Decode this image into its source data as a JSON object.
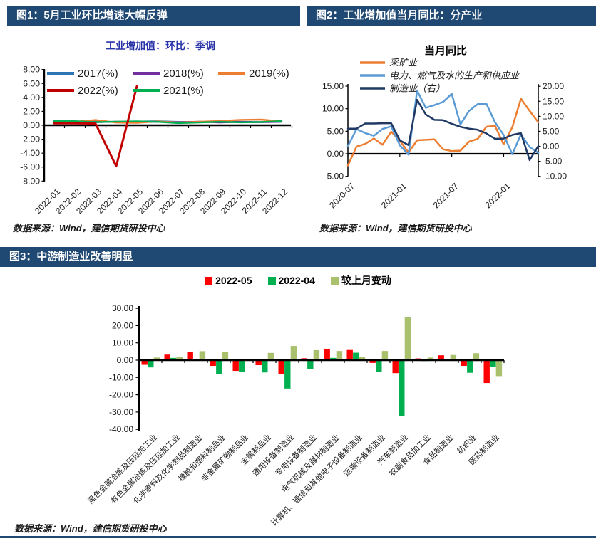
{
  "theme": {
    "banner_color": "#1F4873",
    "banner_text_color": "#FFFFFF",
    "subtitle_color": "#2933A8",
    "axis_color": "#000000"
  },
  "figure1": {
    "banner_title": "图1：5月工业环比增速大幅反弹",
    "subtitle": "工业增加值：环比：季调",
    "source": "数据来源：Wind，建信期货研投中心"
  },
  "figure2": {
    "banner_title": "图2：工业增加值当月同比：分产业",
    "title": "当月同比",
    "source": "数据来源：Wind，建信期货研投中心"
  },
  "figure3": {
    "banner_title": "图3：中游制造业改善明显",
    "source": "数据来源：Wind，建信期货研投中心"
  },
  "chart_data": [
    {
      "id": "figure1",
      "type": "line",
      "title": "工业增加值：环比：季调",
      "ylim": [
        -8,
        8
      ],
      "ytick_step": 2,
      "grid": false,
      "legend_position": "top-inside",
      "categories": [
        "2022-01",
        "2022-02",
        "2022-03",
        "2022-04",
        "2022-05",
        "2022-06",
        "2022-07",
        "2022-08",
        "2022-09",
        "2022-10",
        "2022-11",
        "2022-12"
      ],
      "series": [
        {
          "name": "2017(%)",
          "color": "#2E75B6",
          "values": [
            0.52,
            0.46,
            0.56,
            0.47,
            0.53,
            0.58,
            0.49,
            0.45,
            0.55,
            0.5,
            0.47,
            0.52
          ]
        },
        {
          "name": "2018(%)",
          "color": "#7030A0",
          "values": [
            0.5,
            0.48,
            0.44,
            0.52,
            0.46,
            0.5,
            0.44,
            0.52,
            0.41,
            0.48,
            0.44,
            0.5
          ]
        },
        {
          "name": "2019(%)",
          "color": "#ED7D31",
          "values": [
            0.44,
            0.5,
            0.76,
            0.39,
            0.36,
            0.55,
            0.4,
            0.5,
            0.62,
            0.78,
            0.82,
            0.56
          ]
        },
        {
          "name": "2022(%)",
          "color": "#C00000",
          "values": [
            0.3,
            0.3,
            0.25,
            -5.87,
            5.61,
            null,
            null,
            null,
            null,
            null,
            null,
            null
          ]
        },
        {
          "name": "2021(%)",
          "color": "#00B050",
          "values": [
            0.63,
            0.59,
            0.45,
            0.52,
            0.56,
            0.49,
            0.32,
            0.4,
            0.5,
            0.42,
            0.46,
            0.6
          ]
        }
      ]
    },
    {
      "id": "figure2",
      "type": "line",
      "title": "当月同比",
      "left_ylim": [
        -5,
        15
      ],
      "right_ylim": [
        -10,
        20
      ],
      "ytick_step": 5,
      "grid": false,
      "legend_position": "top-left-inside",
      "x_months": [
        "2020-07",
        "2020-08",
        "2020-09",
        "2020-10",
        "2020-11",
        "2020-12",
        "2021-01",
        "2021-02",
        "2021-03",
        "2021-04",
        "2021-05",
        "2021-06",
        "2021-07",
        "2021-08",
        "2021-09",
        "2021-10",
        "2021-11",
        "2021-12",
        "2022-01",
        "2022-02",
        "2022-03",
        "2022-04",
        "2022-05"
      ],
      "x_tick_indices": [
        0,
        6,
        12,
        18
      ],
      "x_tick_labels": [
        "2020-07",
        "2021-01",
        "2021-07",
        "2022-01"
      ],
      "series": [
        {
          "name": "采矿业",
          "axis": "left",
          "color": "#ED7D31",
          "values": [
            -2.6,
            1.6,
            2.2,
            3.4,
            2.0,
            4.9,
            2.9,
            0.3,
            3.0,
            3.1,
            3.2,
            1.0,
            0.6,
            0.7,
            2.7,
            3.3,
            6.0,
            6.2,
            2.1,
            5.9,
            12.2,
            9.5,
            7.0
          ]
        },
        {
          "name": "电力、燃气及水的生产和供应业",
          "axis": "left",
          "color": "#5B9BD5",
          "values": [
            1.7,
            5.5,
            4.6,
            4.0,
            5.5,
            6.1,
            1.9,
            -0.2,
            14.0,
            10.2,
            10.8,
            11.5,
            13.3,
            6.5,
            9.5,
            11.0,
            11.1,
            7.0,
            4.2,
            -0.1,
            4.3,
            1.5,
            0.2
          ]
        },
        {
          "name": "制造业（右）",
          "axis": "right",
          "color": "#1F3864",
          "values": [
            5.9,
            5.9,
            7.6,
            7.6,
            7.7,
            7.7,
            2.0,
            0.4,
            15.5,
            10.6,
            8.8,
            8.7,
            7.5,
            6.5,
            5.9,
            5.5,
            4.3,
            2.5,
            2.6,
            3.8,
            4.4,
            -4.6,
            0.1
          ]
        }
      ]
    },
    {
      "id": "figure3",
      "type": "bar",
      "ylim": [
        -40,
        30
      ],
      "ytick_step": 10,
      "grid": false,
      "legend_position": "top-center",
      "categories": [
        "黑色金属冶炼及压延加工业",
        "有色金属冶炼及压延加工业",
        "化学原料及化学制品制造业",
        "橡胶和塑料制品业",
        "非金属矿物制品业",
        "金属制品业",
        "通用设备制造业",
        "专用设备制造业",
        "电气机械及器材制造业",
        "计算机、通信和其他电子设备制造业",
        "运输设备制造业",
        "汽车制造业",
        "农副食品加工业",
        "食品制造业",
        "纺织业",
        "医药制造业"
      ],
      "series": [
        {
          "name": "2022-05",
          "color": "#FF0000",
          "values": [
            -2.7,
            3.2,
            4.8,
            -3.3,
            -6.2,
            -2.9,
            -8.2,
            1.1,
            6.6,
            6.3,
            -1.6,
            -7.5,
            1.0,
            2.8,
            -3.3,
            -13.2
          ]
        },
        {
          "name": "2022-04",
          "color": "#00B050",
          "values": [
            -4.2,
            1.3,
            -0.4,
            -8.1,
            -6.8,
            -7.1,
            -16.4,
            -5.1,
            1.3,
            4.3,
            -6.9,
            -32.5,
            -0.5,
            -0.2,
            -7.3,
            -4.0
          ]
        },
        {
          "name": "较上月变动",
          "color": "#A9C16C",
          "values": [
            1.5,
            1.9,
            5.2,
            4.8,
            0.6,
            4.2,
            8.2,
            6.2,
            5.3,
            2.0,
            5.3,
            25.0,
            1.5,
            3.0,
            4.0,
            -9.2
          ]
        }
      ]
    }
  ]
}
